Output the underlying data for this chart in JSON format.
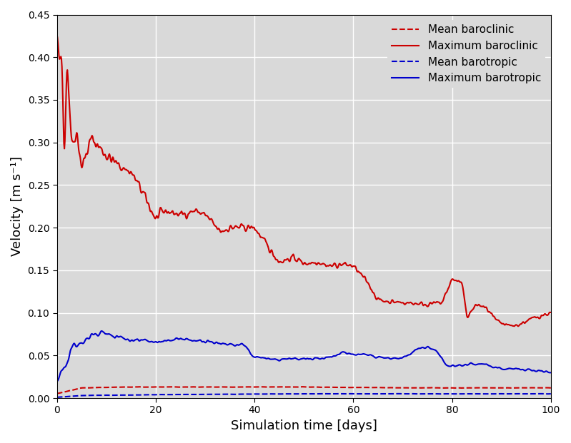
{
  "title": "",
  "xlabel": "Simulation time [days]",
  "ylabel": "Velocity [m s⁻¹]",
  "xlim": [
    0,
    100
  ],
  "ylim": [
    0,
    0.45
  ],
  "yticks": [
    0.0,
    0.05,
    0.1,
    0.15,
    0.2,
    0.25,
    0.3,
    0.35,
    0.4,
    0.45
  ],
  "xticks": [
    0,
    20,
    40,
    60,
    80,
    100
  ],
  "bg_color": "#d9d9d9",
  "grid_color": "#ffffff",
  "legend_entries": [
    {
      "label": "Mean baroclinic",
      "color": "#cc0000",
      "linestyle": "dashed"
    },
    {
      "label": "Maximum baroclinic",
      "color": "#cc0000",
      "linestyle": "solid"
    },
    {
      "label": "Mean barotropic",
      "color": "#0000cc",
      "linestyle": "dashed"
    },
    {
      "label": "Maximum barotropic",
      "color": "#0000cc",
      "linestyle": "solid"
    }
  ],
  "figsize": [
    7.99,
    6.21
  ],
  "dpi": 100
}
